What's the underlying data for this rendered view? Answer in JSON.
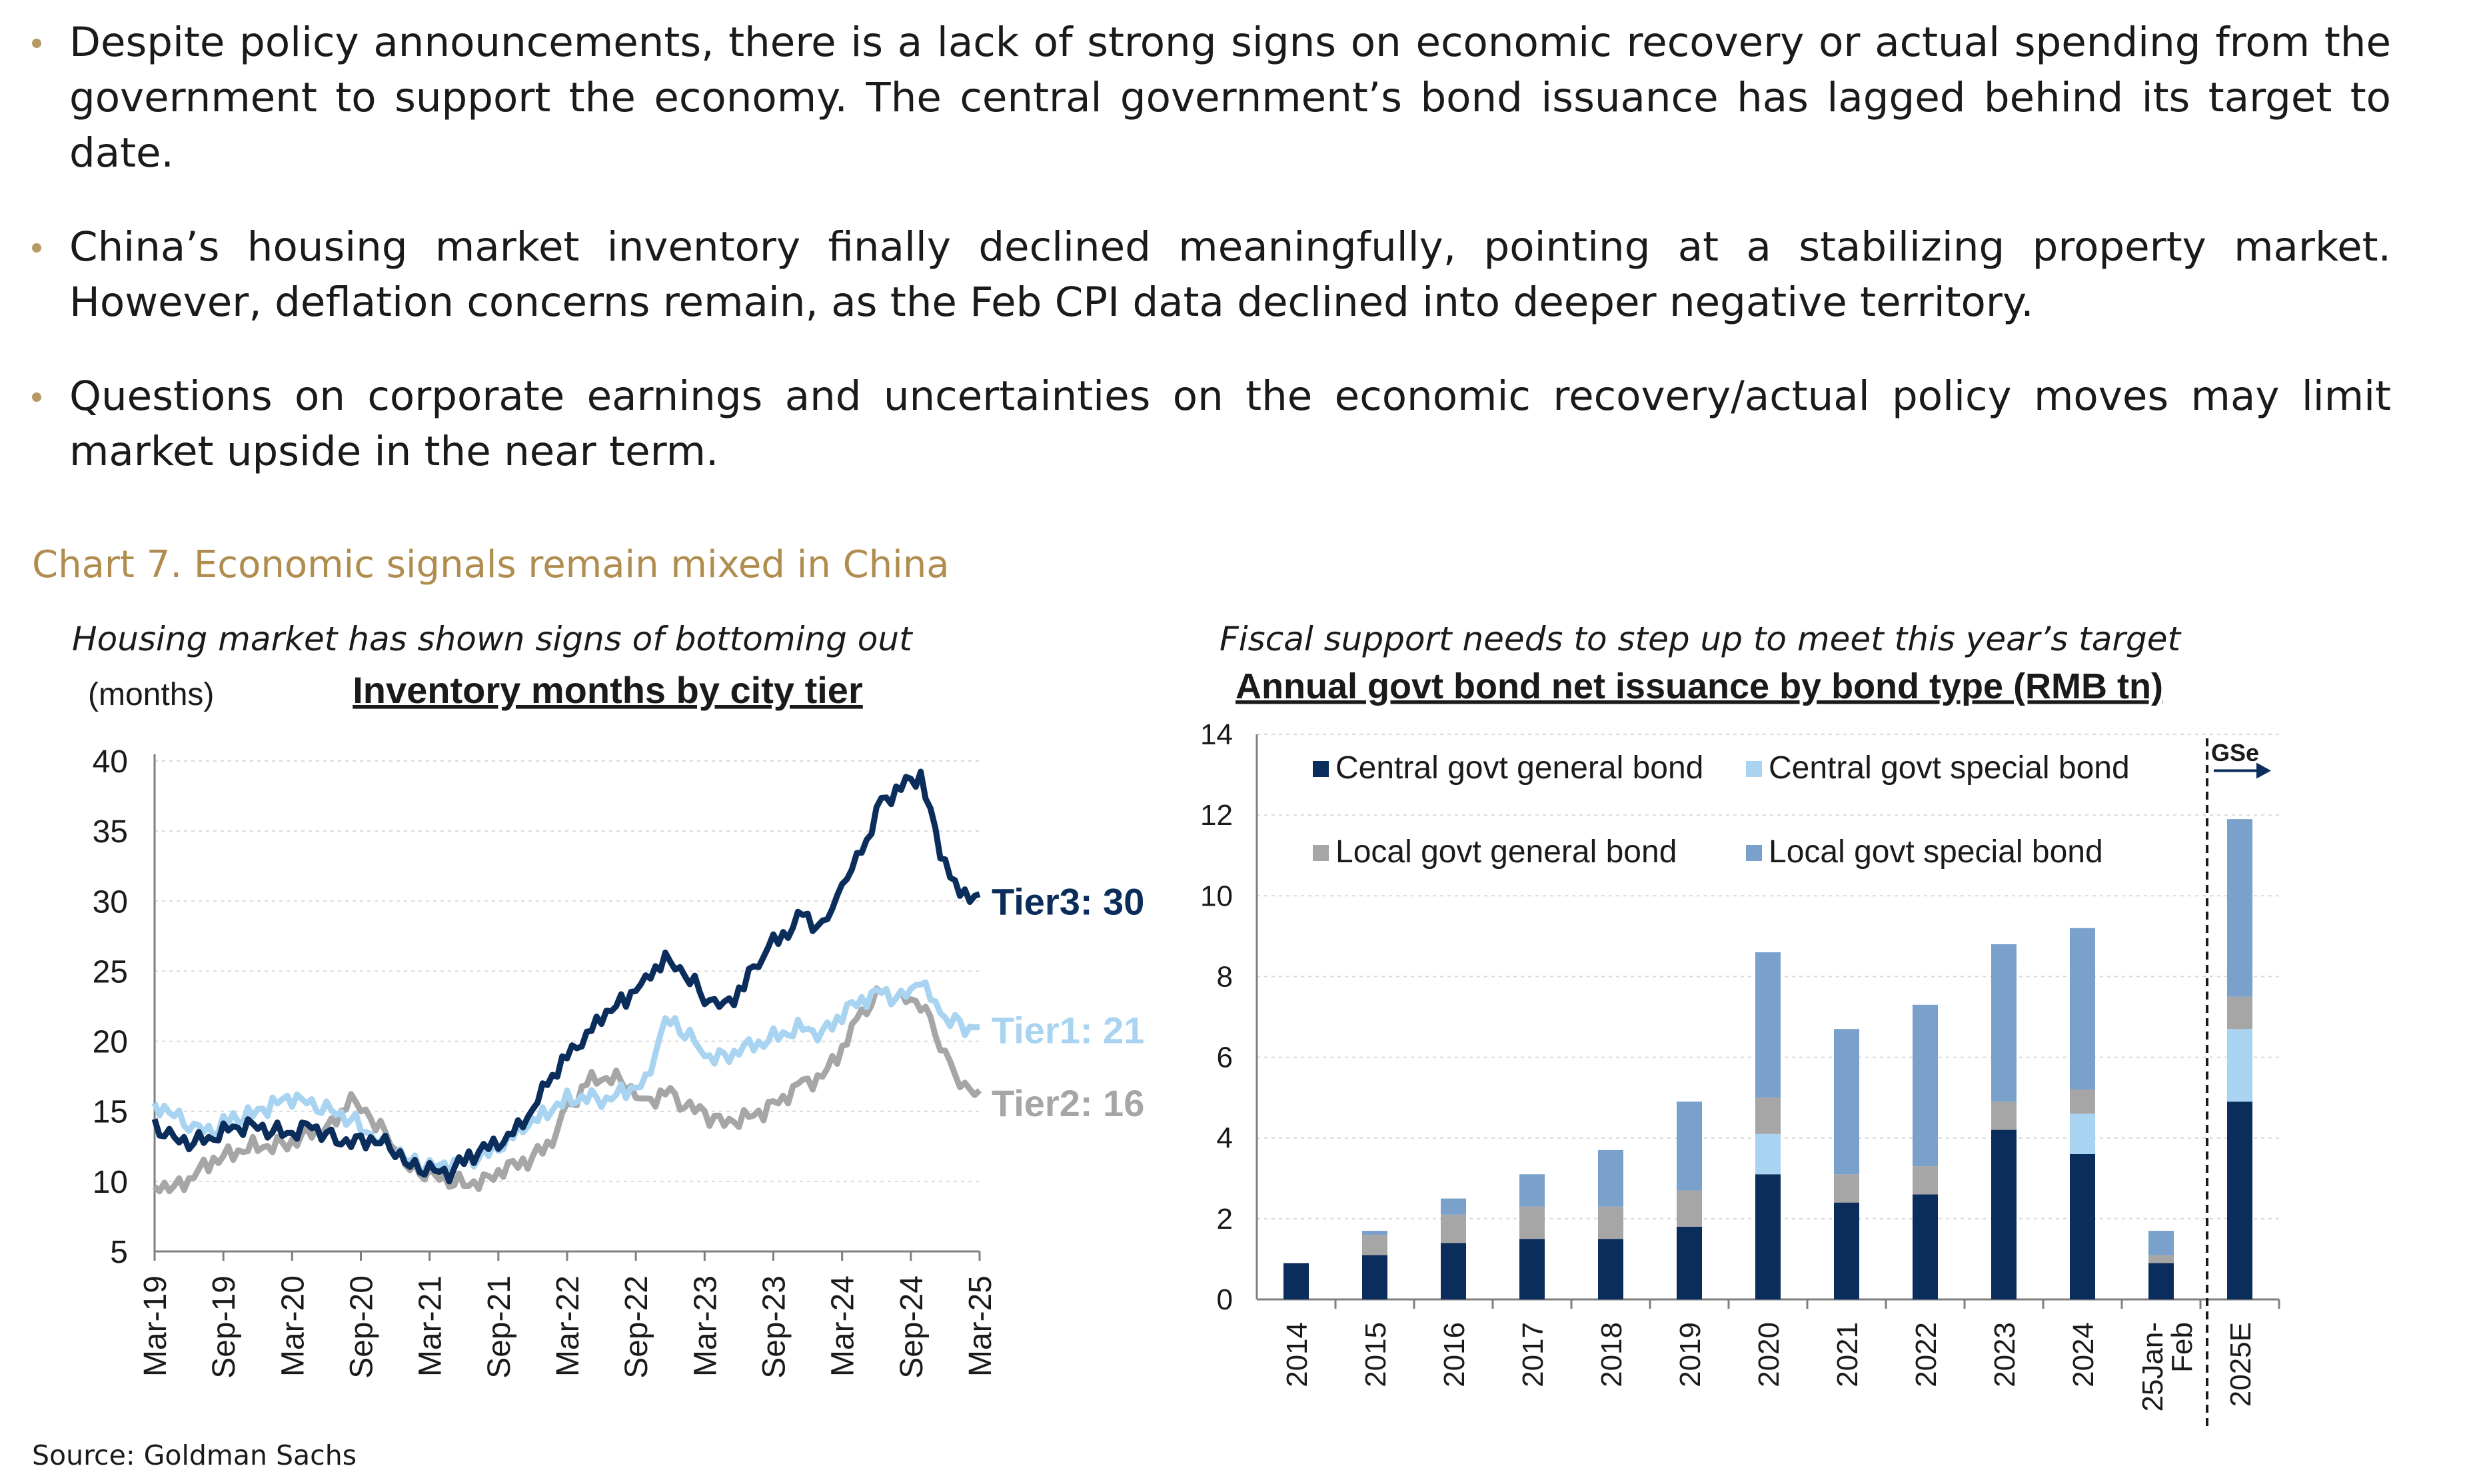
{
  "bullets": [
    "Despite policy announcements, there is a lack of strong signs on economic recovery or actual spending from the government to support the economy. The central government’s bond issuance has lagged behind its target to date.",
    "China’s housing market inventory finally declined meaningfully, pointing at a stabilizing property market. However, deflation concerns remain, as the Feb CPI data declined into deeper negative territory.",
    "Questions on corporate earnings and uncertainties on the economic recovery/actual policy moves may limit market upside in the near term."
  ],
  "chart_title": "Chart 7. Economic signals remain mixed in China",
  "left_subtitle": "Housing market has shown signs of bottoming out",
  "right_subtitle": "Fiscal support needs to step up to meet this year’s target",
  "source": "Source: Goldman Sachs",
  "colors": {
    "tier3": "#0b2d5b",
    "tier1": "#a8d4f2",
    "tier2": "#a6a6a6",
    "cg_general": "#0b2d5b",
    "cg_special": "#a8d4f2",
    "lg_general": "#a6a6a6",
    "lg_special": "#7aa0cc",
    "accent": "#b08d4f"
  },
  "chart_data": [
    {
      "type": "line",
      "title": "Inventory months by city tier",
      "ylabel": "(months)",
      "ylim": [
        5,
        40
      ],
      "yticks": [
        5,
        10,
        15,
        20,
        25,
        30,
        35,
        40
      ],
      "x_tick_labels": [
        "Mar-19",
        "Sep-19",
        "Mar-20",
        "Sep-20",
        "Mar-21",
        "Sep-21",
        "Mar-22",
        "Sep-22",
        "Mar-23",
        "Sep-23",
        "Mar-24",
        "Sep-24",
        "Mar-25"
      ],
      "x_start": "Mar-19",
      "x_step": "half-month",
      "series": [
        {
          "name": "Tier3",
          "end_label": "Tier3: 30",
          "anchors": [
            [
              0,
              14
            ],
            [
              4,
              13
            ],
            [
              8,
              12.8
            ],
            [
              12,
              13.2
            ],
            [
              16,
              13.8
            ],
            [
              20,
              14
            ],
            [
              24,
              13.6
            ],
            [
              28,
              13.4
            ],
            [
              32,
              14
            ],
            [
              36,
              13
            ],
            [
              40,
              12.8
            ],
            [
              44,
              13
            ],
            [
              48,
              12.5
            ],
            [
              52,
              11.2
            ],
            [
              56,
              10.8
            ],
            [
              60,
              10.6
            ],
            [
              64,
              11.8
            ],
            [
              68,
              12.4
            ],
            [
              72,
              13.2
            ],
            [
              76,
              14.5
            ],
            [
              80,
              17
            ],
            [
              84,
              19
            ],
            [
              88,
              20.5
            ],
            [
              92,
              22
            ],
            [
              96,
              23
            ],
            [
              100,
              24.5
            ],
            [
              104,
              25.8
            ],
            [
              108,
              24.8
            ],
            [
              112,
              23.2
            ],
            [
              116,
              22.5
            ],
            [
              120,
              24
            ],
            [
              124,
              26.5
            ],
            [
              128,
              27.5
            ],
            [
              132,
              29
            ],
            [
              136,
              28
            ],
            [
              140,
              31
            ],
            [
              144,
              33.5
            ],
            [
              148,
              37
            ],
            [
              152,
              38.2
            ],
            [
              156,
              39
            ],
            [
              160,
              33.5
            ],
            [
              164,
              30.5
            ],
            [
              168,
              30.5
            ]
          ]
        },
        {
          "name": "Tier1",
          "end_label": "Tier1: 21",
          "anchors": [
            [
              0,
              15.5
            ],
            [
              4,
              14.8
            ],
            [
              8,
              13.8
            ],
            [
              12,
              13.6
            ],
            [
              16,
              14.5
            ],
            [
              20,
              14.8
            ],
            [
              24,
              15.5
            ],
            [
              28,
              16
            ],
            [
              32,
              15.5
            ],
            [
              36,
              15
            ],
            [
              40,
              14.5
            ],
            [
              44,
              13.2
            ],
            [
              48,
              12.5
            ],
            [
              52,
              11.5
            ],
            [
              56,
              11
            ],
            [
              60,
              11.2
            ],
            [
              64,
              11.5
            ],
            [
              68,
              12
            ],
            [
              72,
              13
            ],
            [
              76,
              14
            ],
            [
              80,
              15
            ],
            [
              84,
              15.8
            ],
            [
              88,
              16
            ],
            [
              92,
              15.8
            ],
            [
              96,
              16.5
            ],
            [
              100,
              17
            ],
            [
              104,
              21.5
            ],
            [
              108,
              20.8
            ],
            [
              112,
              19
            ],
            [
              116,
              18.8
            ],
            [
              120,
              19.5
            ],
            [
              124,
              20
            ],
            [
              128,
              20.5
            ],
            [
              132,
              21
            ],
            [
              136,
              20.5
            ],
            [
              140,
              22
            ],
            [
              144,
              23
            ],
            [
              148,
              23.5
            ],
            [
              152,
              23
            ],
            [
              156,
              24.3
            ],
            [
              160,
              22
            ],
            [
              164,
              21
            ],
            [
              168,
              21
            ]
          ]
        },
        {
          "name": "Tier2",
          "end_label": "Tier2: 16",
          "anchors": [
            [
              0,
              9.8
            ],
            [
              4,
              9.5
            ],
            [
              8,
              10.5
            ],
            [
              12,
              11.5
            ],
            [
              16,
              12
            ],
            [
              20,
              12.5
            ],
            [
              24,
              12.5
            ],
            [
              28,
              12.8
            ],
            [
              32,
              13.5
            ],
            [
              36,
              14
            ],
            [
              40,
              15.8
            ],
            [
              44,
              14.5
            ],
            [
              48,
              13
            ],
            [
              52,
              11
            ],
            [
              56,
              10.5
            ],
            [
              60,
              10
            ],
            [
              64,
              9.8
            ],
            [
              68,
              10.2
            ],
            [
              72,
              11
            ],
            [
              76,
              11.5
            ],
            [
              80,
              12.5
            ],
            [
              84,
              15
            ],
            [
              88,
              17
            ],
            [
              92,
              17.5
            ],
            [
              96,
              17
            ],
            [
              100,
              15.5
            ],
            [
              104,
              16.5
            ],
            [
              108,
              15.5
            ],
            [
              112,
              14.8
            ],
            [
              116,
              14.2
            ],
            [
              120,
              14.5
            ],
            [
              124,
              15
            ],
            [
              128,
              16
            ],
            [
              132,
              17
            ],
            [
              136,
              17.5
            ],
            [
              140,
              19.5
            ],
            [
              144,
              22
            ],
            [
              148,
              23.5
            ],
            [
              152,
              23
            ],
            [
              156,
              22.8
            ],
            [
              160,
              20
            ],
            [
              164,
              17
            ],
            [
              168,
              16.5
            ]
          ]
        }
      ]
    },
    {
      "type": "bar",
      "stacked": true,
      "title": "Annual govt bond net issuance by bond type (RMB tn)",
      "ylim": [
        0,
        14
      ],
      "yticks": [
        0,
        2,
        4,
        6,
        8,
        10,
        12,
        14
      ],
      "categories": [
        "2014",
        "2015",
        "2016",
        "2017",
        "2018",
        "2019",
        "2020",
        "2021",
        "2022",
        "2023",
        "2024",
        "25Jan-Feb",
        "2025E"
      ],
      "annotation": "GSe",
      "series": [
        {
          "name": "Central govt general bond",
          "values": [
            0.9,
            1.1,
            1.4,
            1.5,
            1.5,
            1.8,
            3.1,
            2.4,
            2.6,
            4.2,
            3.6,
            0.9,
            4.9
          ]
        },
        {
          "name": "Central govt special bond",
          "values": [
            0,
            0,
            0,
            0,
            0,
            0,
            1,
            0,
            0,
            0,
            1,
            0,
            1.8
          ]
        },
        {
          "name": "Local govt general bond",
          "values": [
            0,
            0.5,
            0.7,
            0.8,
            0.8,
            0.9,
            0.9,
            0.7,
            0.7,
            0.7,
            0.6,
            0.2,
            0.8
          ]
        },
        {
          "name": "Local govt special bond",
          "values": [
            0,
            0.1,
            0.4,
            0.8,
            1.4,
            2.2,
            3.6,
            3.6,
            4,
            3.9,
            4,
            0.6,
            4.4
          ]
        }
      ]
    }
  ]
}
